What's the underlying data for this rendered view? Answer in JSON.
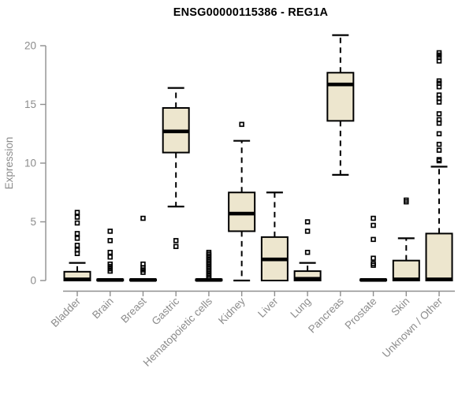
{
  "chart_data": {
    "type": "boxplot",
    "title": "ENSG00000115386 - REG1A",
    "xlabel": "",
    "ylabel": "Expression",
    "ylim": [
      0,
      21.2
    ],
    "yticks": [
      0,
      5,
      10,
      15,
      20
    ],
    "grid": false,
    "legend": "none",
    "box_fill_color": "#EDE6CE",
    "box_stroke_color": "#000000",
    "axis_color": "#8F8F8F",
    "label_color": "#8C8C8C",
    "categories": [
      "Bladder",
      "Brain",
      "Breast",
      "Gastric",
      "Hematopoietic cells",
      "Kidney",
      "Liver",
      "Lung",
      "Pancreas",
      "Prostate",
      "Skin",
      "Unknown / Other"
    ],
    "boxes": [
      {
        "label": "Bladder",
        "whisker_low": 0,
        "q1": 0,
        "median": 0.1,
        "q3": 0.75,
        "whisker_high": 1.5,
        "outliers": [
          2.3,
          2.6,
          3.0,
          3.6,
          4.0,
          4.9,
          5.4,
          5.8
        ]
      },
      {
        "label": "Brain",
        "whisker_low": 0,
        "q1": 0,
        "median": 0.05,
        "q3": 0.1,
        "whisker_high": 0.1,
        "outliers": [
          0.8,
          1.0,
          1.2,
          1.4,
          2.0,
          2.4,
          3.4,
          4.2
        ]
      },
      {
        "label": "Breast",
        "whisker_low": 0,
        "q1": 0,
        "median": 0.05,
        "q3": 0.1,
        "whisker_high": 0.1,
        "outliers": [
          0.7,
          0.9,
          1.1,
          1.4,
          5.3
        ]
      },
      {
        "label": "Gastric",
        "whisker_low": 6.3,
        "q1": 10.9,
        "median": 12.7,
        "q3": 14.7,
        "whisker_high": 16.4,
        "outliers": [
          2.9,
          3.4
        ]
      },
      {
        "label": "Hematopoietic cells",
        "whisker_low": 0,
        "q1": 0,
        "median": 0.05,
        "q3": 0.1,
        "whisker_high": 0.1,
        "outliers": [
          0.15,
          0.3,
          0.45,
          0.6,
          0.75,
          0.9,
          1.05,
          1.2,
          1.35,
          1.5,
          1.65,
          1.8,
          1.95,
          2.1,
          2.25,
          2.4
        ]
      },
      {
        "label": "Kidney",
        "whisker_low": 0,
        "q1": 4.2,
        "median": 5.7,
        "q3": 7.5,
        "whisker_high": 11.9,
        "outliers": [
          13.3
        ]
      },
      {
        "label": "Liver",
        "whisker_low": 0,
        "q1": 0,
        "median": 1.8,
        "q3": 3.7,
        "whisker_high": 7.5,
        "outliers": []
      },
      {
        "label": "Lung",
        "whisker_low": 0,
        "q1": 0,
        "median": 0.15,
        "q3": 0.8,
        "whisker_high": 1.5,
        "outliers": [
          2.4,
          4.2,
          5.0
        ]
      },
      {
        "label": "Pancreas",
        "whisker_low": 9.0,
        "q1": 13.6,
        "median": 16.7,
        "q3": 17.7,
        "whisker_high": 20.9,
        "outliers": []
      },
      {
        "label": "Prostate",
        "whisker_low": 0,
        "q1": 0,
        "median": 0.05,
        "q3": 0.1,
        "whisker_high": 0.1,
        "outliers": [
          1.3,
          1.45,
          1.9,
          3.5,
          4.7,
          5.3
        ]
      },
      {
        "label": "Skin",
        "whisker_low": 0,
        "q1": 0,
        "median": 0.1,
        "q3": 1.7,
        "whisker_high": 3.6,
        "outliers": [
          6.7,
          6.85
        ]
      },
      {
        "label": "Unknown / Other",
        "whisker_low": 0,
        "q1": 0,
        "median": 0.1,
        "q3": 4.0,
        "whisker_high": 9.7,
        "outliers": [
          10.2,
          10.3,
          11.1,
          11.6,
          12.5,
          13.4,
          13.7,
          14.2,
          15.2,
          15.5,
          15.8,
          16.5,
          16.8,
          17.0,
          18.7,
          19.0,
          19.2,
          19.4
        ]
      }
    ]
  }
}
